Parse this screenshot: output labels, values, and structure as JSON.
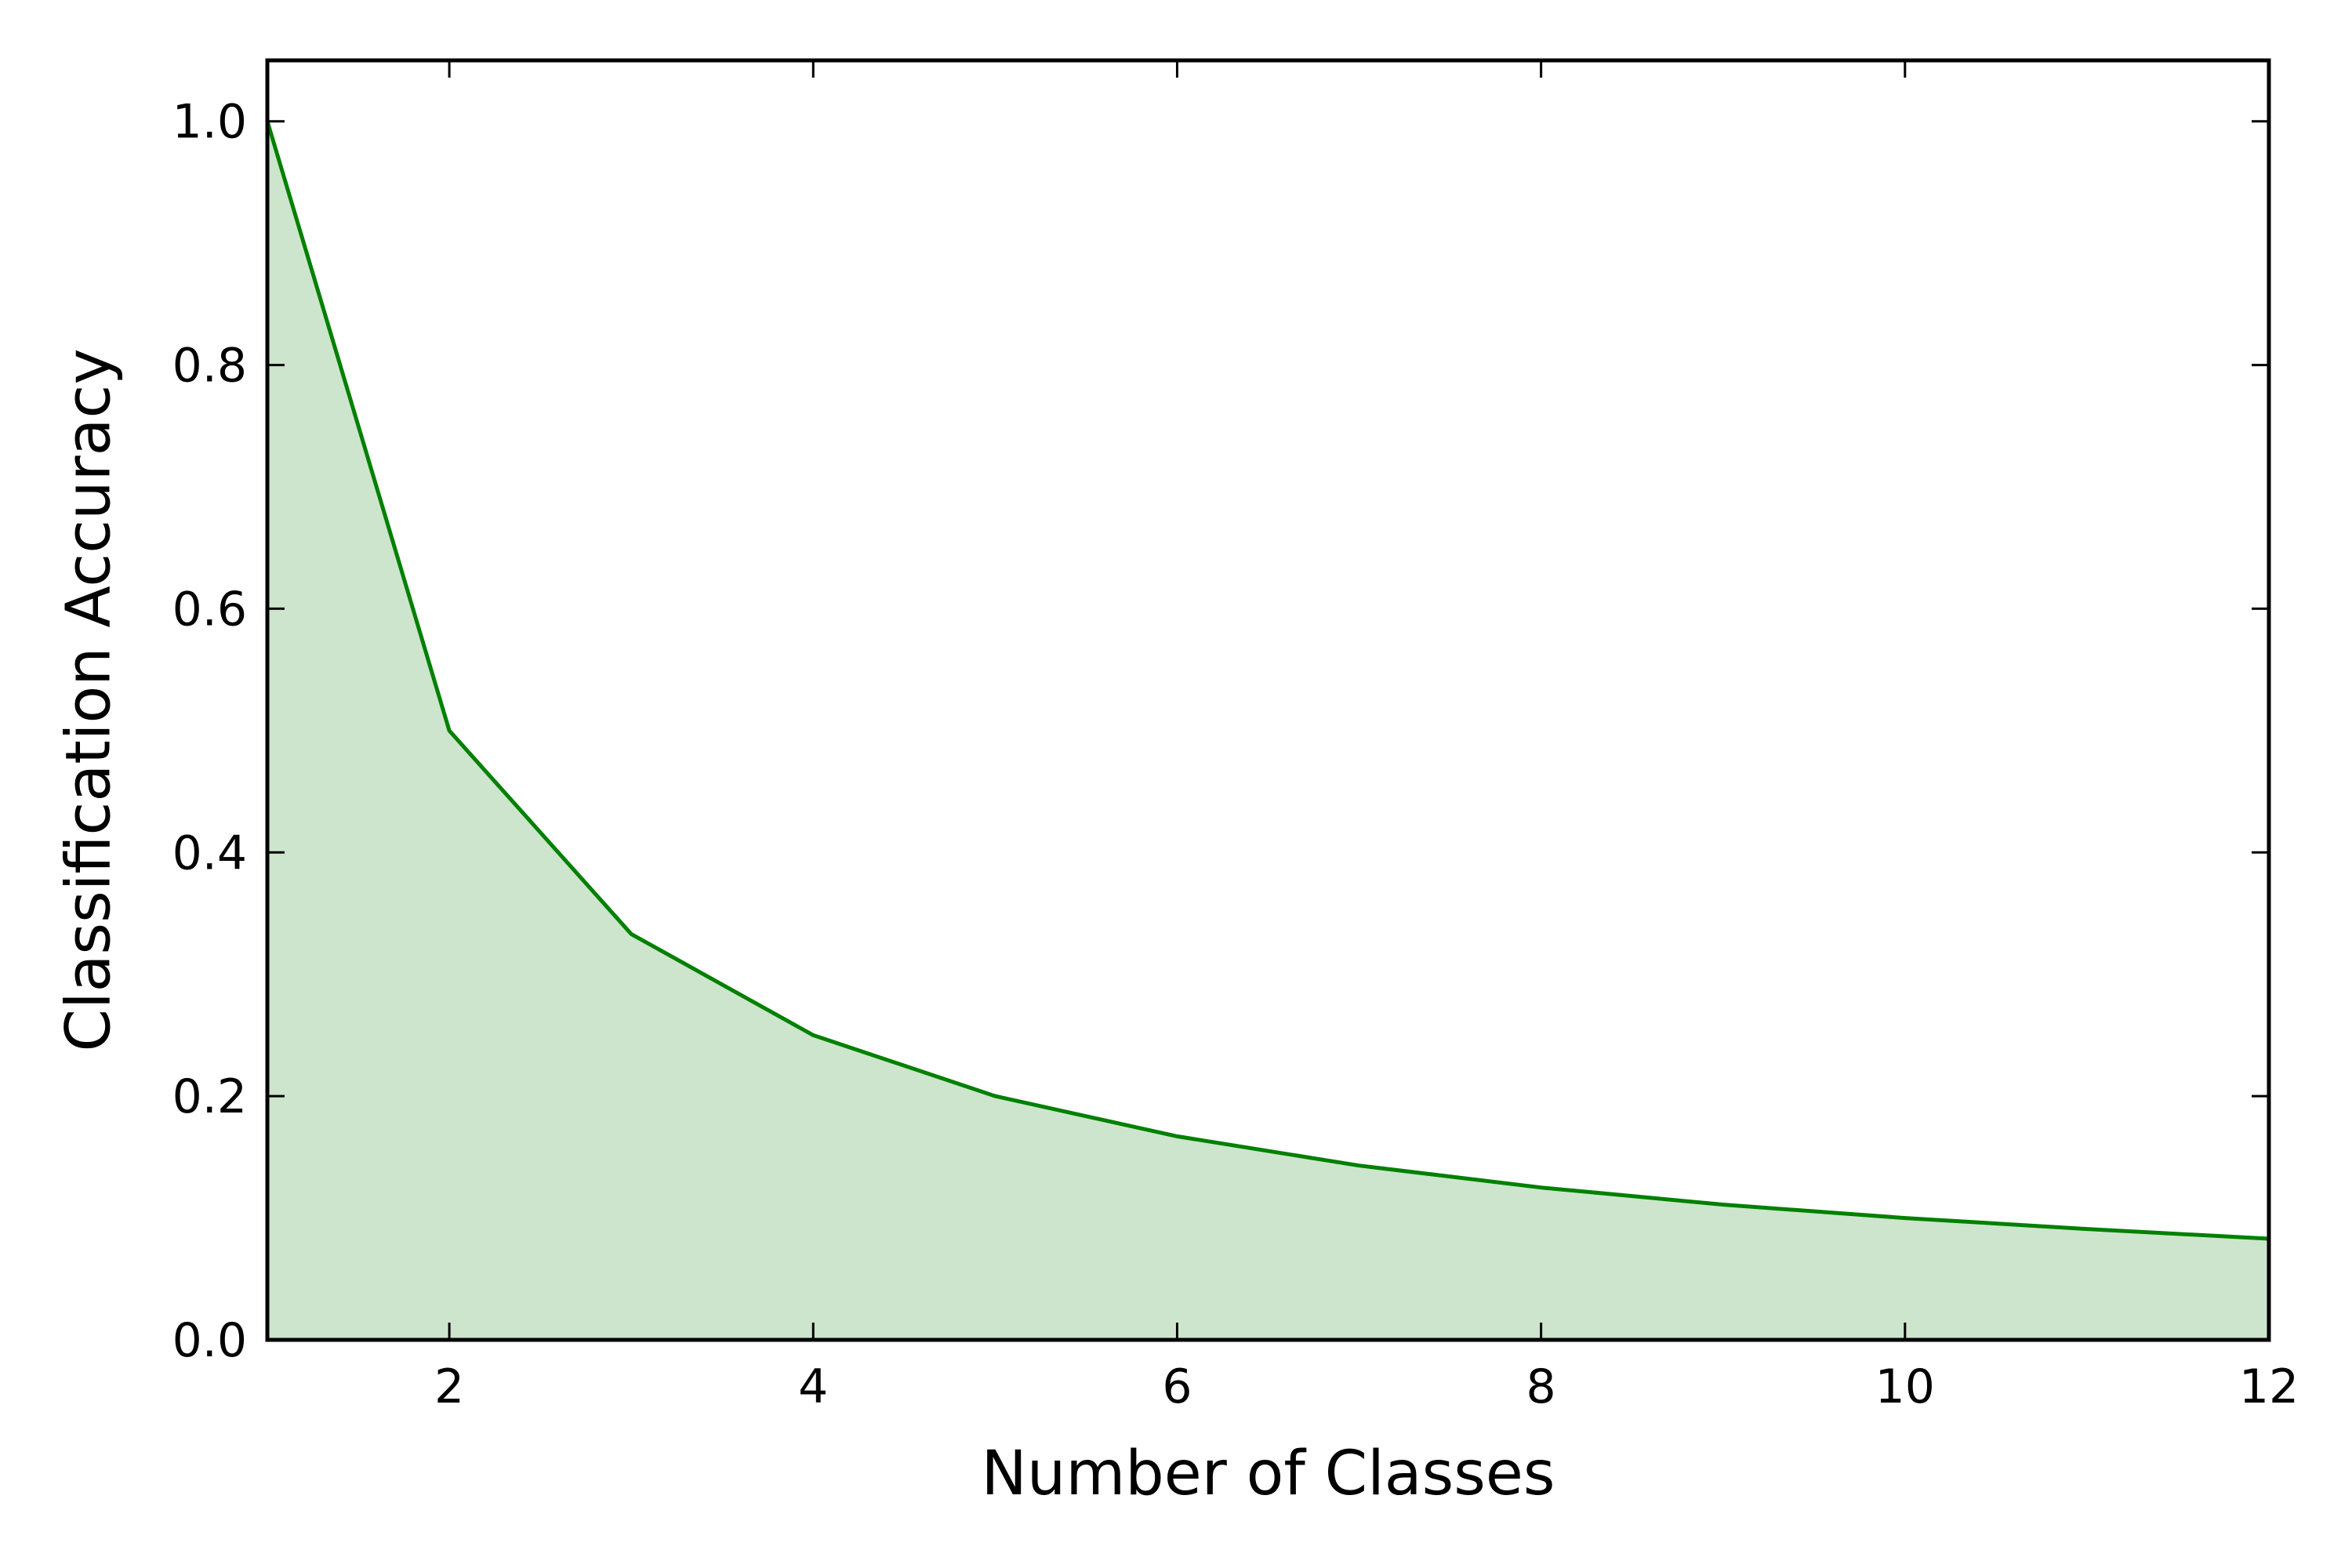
{
  "chart_data": {
    "type": "area",
    "xlabel": "Number of Classes",
    "ylabel": "Classification Accuracy",
    "xlim": [
      1,
      12
    ],
    "ylim": [
      0,
      1.05
    ],
    "xticks": [
      2,
      4,
      6,
      8,
      10,
      12
    ],
    "xtick_labels": [
      "2",
      "4",
      "6",
      "8",
      "10",
      "12"
    ],
    "yticks": [
      0.0,
      0.2,
      0.4,
      0.6,
      0.8,
      1.0
    ],
    "ytick_labels": [
      "0.0",
      "0.2",
      "0.4",
      "0.6",
      "0.8",
      "1.0"
    ],
    "grid": false,
    "series": [
      {
        "x": [
          1,
          2,
          3,
          4,
          5,
          6,
          7,
          8,
          9,
          10,
          11,
          12
        ],
        "y": [
          1.0,
          0.5,
          0.333,
          0.25,
          0.2,
          0.167,
          0.143,
          0.125,
          0.111,
          0.1,
          0.091,
          0.083
        ],
        "line_color": "#008000",
        "fill_color": "#cde5cc"
      }
    ]
  }
}
